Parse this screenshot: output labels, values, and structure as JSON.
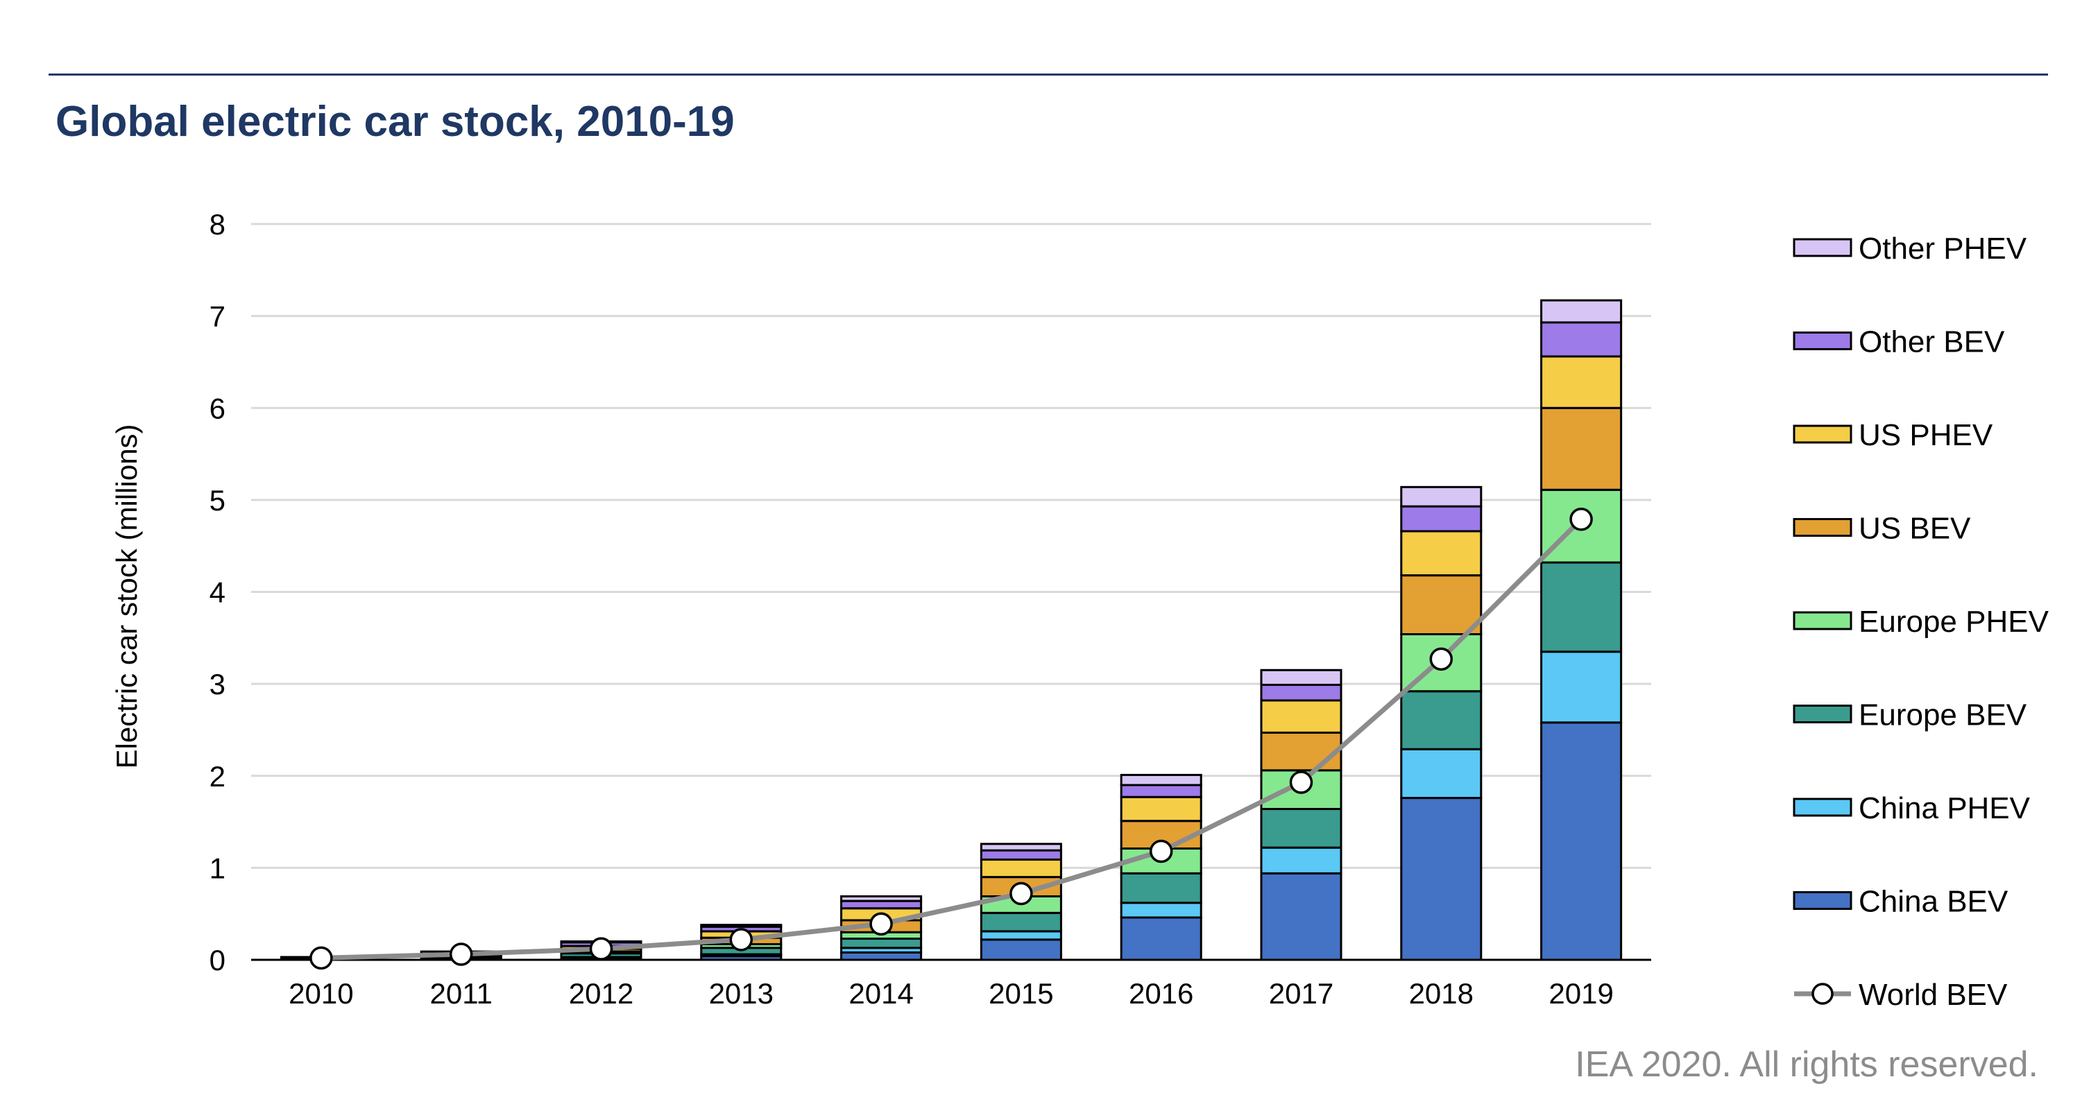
{
  "chart_data": {
    "type": "bar",
    "stacked": true,
    "title": "Global electric car stock, 2010-19",
    "ylabel": "Electric car stock (millions)",
    "xlabel": "",
    "ylim": [
      0,
      8
    ],
    "yticks": [
      0,
      1,
      2,
      3,
      4,
      5,
      6,
      7,
      8
    ],
    "categories": [
      "2010",
      "2011",
      "2012",
      "2013",
      "2014",
      "2015",
      "2016",
      "2017",
      "2018",
      "2019"
    ],
    "series": [
      {
        "name": "China BEV",
        "color": "#4472c4",
        "values": [
          0.0,
          0.01,
          0.02,
          0.04,
          0.08,
          0.22,
          0.46,
          0.94,
          1.76,
          2.58
        ]
      },
      {
        "name": "China PHEV",
        "color": "#5bc8f5",
        "values": [
          0.0,
          0.0,
          0.01,
          0.02,
          0.05,
          0.09,
          0.16,
          0.28,
          0.53,
          0.77
        ]
      },
      {
        "name": "Europe BEV",
        "color": "#3a9b8f",
        "values": [
          0.01,
          0.02,
          0.04,
          0.07,
          0.1,
          0.2,
          0.32,
          0.42,
          0.63,
          0.97
        ]
      },
      {
        "name": "Europe PHEV",
        "color": "#85e88f",
        "values": [
          0.0,
          0.01,
          0.02,
          0.04,
          0.07,
          0.18,
          0.27,
          0.42,
          0.62,
          0.79
        ]
      },
      {
        "name": "US BEV",
        "color": "#e3a033",
        "values": [
          0.0,
          0.01,
          0.03,
          0.07,
          0.13,
          0.21,
          0.3,
          0.41,
          0.64,
          0.89
        ]
      },
      {
        "name": "US PHEV",
        "color": "#f5cd47",
        "values": [
          0.0,
          0.01,
          0.03,
          0.07,
          0.13,
          0.19,
          0.26,
          0.35,
          0.48,
          0.56
        ]
      },
      {
        "name": "Other BEV",
        "color": "#9d7be8",
        "values": [
          0.02,
          0.03,
          0.04,
          0.05,
          0.08,
          0.1,
          0.13,
          0.17,
          0.27,
          0.37
        ]
      },
      {
        "name": "Other PHEV",
        "color": "#d7c6f5",
        "values": [
          0.0,
          0.0,
          0.01,
          0.02,
          0.05,
          0.07,
          0.11,
          0.16,
          0.21,
          0.24
        ]
      }
    ],
    "line_series": {
      "name": "World BEV",
      "color": "#8c8c8c",
      "values": [
        0.02,
        0.06,
        0.12,
        0.22,
        0.39,
        0.72,
        1.18,
        1.93,
        3.27,
        4.79
      ]
    },
    "legend_order": [
      "Other PHEV",
      "Other BEV",
      "US PHEV",
      "US BEV",
      "Europe PHEV",
      "Europe BEV",
      "China PHEV",
      "China BEV",
      "World BEV"
    ],
    "legend_position": "right",
    "grid": true
  },
  "credit": "IEA 2020. All rights reserved."
}
